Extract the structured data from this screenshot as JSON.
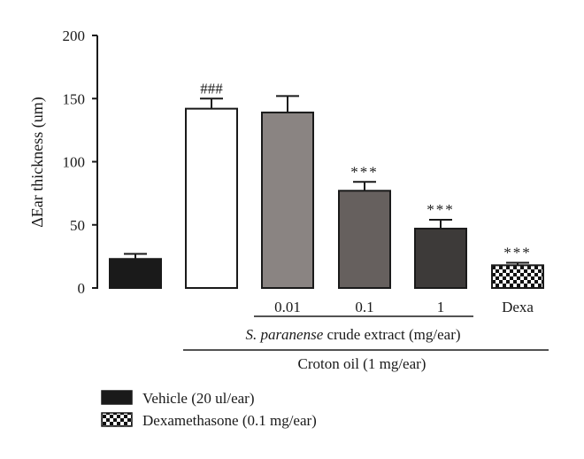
{
  "chart_data": {
    "type": "bar",
    "ylabel": "ΔEar thickness (um)",
    "ylim": [
      0,
      200
    ],
    "yticks": [
      0,
      50,
      100,
      150,
      200
    ],
    "grid": false,
    "bars": [
      {
        "value": 23,
        "error": 4,
        "annotation": "",
        "tick_label": "",
        "style": "vehicle",
        "color": "#1a1a1a"
      },
      {
        "value": 142,
        "error": 8,
        "annotation": "###",
        "tick_label": "",
        "style": "croton",
        "color": "#ffffff"
      },
      {
        "value": 139,
        "error": 13,
        "annotation": "",
        "tick_label": "0.01",
        "style": "extract",
        "color": "#8a8482"
      },
      {
        "value": 77,
        "error": 7,
        "annotation": "***",
        "tick_label": "0.1",
        "style": "extract",
        "color": "#66605e"
      },
      {
        "value": 47,
        "error": 7,
        "annotation": "***",
        "tick_label": "1",
        "style": "extract",
        "color": "#3d3a39"
      },
      {
        "value": 18,
        "error": 2,
        "annotation": "***",
        "tick_label": "Dexa",
        "style": "dexamethasone",
        "color": "#111111"
      }
    ],
    "group_labels": {
      "extract_prefix": "S. paranense",
      "extract_suffix": " crude extract (mg/ear)",
      "croton": "Croton oil (1 mg/ear)"
    },
    "legend": [
      {
        "label": "Vehicle (20 ul/ear)",
        "style": "vehicle"
      },
      {
        "label": "Dexamethasone (0.1 mg/ear)",
        "style": "dexamethasone"
      }
    ],
    "legend_position": "bottom-left"
  }
}
